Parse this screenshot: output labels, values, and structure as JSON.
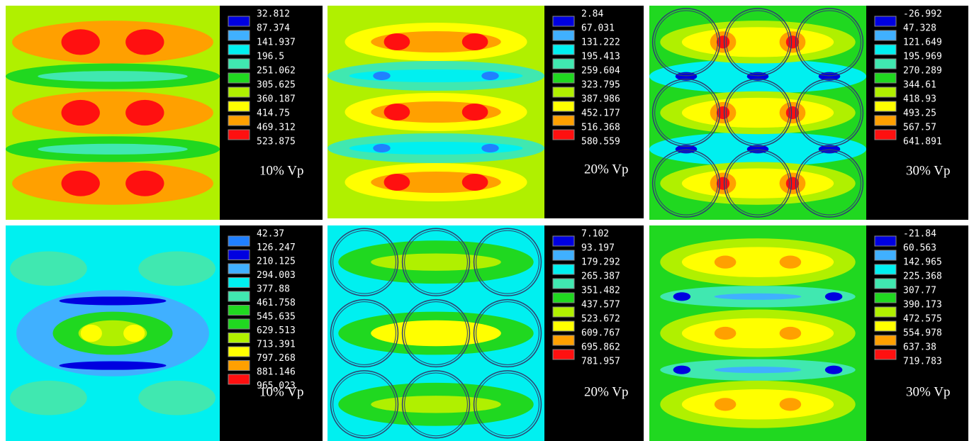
{
  "panels": [
    {
      "legend": [
        "32.812",
        "87.374",
        "141.937",
        "196.5",
        "251.062",
        "305.625",
        "360.187",
        "414.75",
        "469.312",
        "523.875"
      ],
      "label": "10% Vp"
    },
    {
      "legend": [
        "2.84",
        "67.031",
        "131.222",
        "195.413",
        "259.604",
        "323.795",
        "387.986",
        "452.177",
        "516.368",
        "580.559"
      ],
      "label": "20% Vp"
    },
    {
      "legend": [
        "-26.992",
        "47.328",
        "121.649",
        "195.969",
        "270.289",
        "344.61",
        "418.93",
        "493.25",
        "567.57",
        "641.891"
      ],
      "label": "30% Vp"
    },
    {
      "legend": [
        "42.37",
        "126.247",
        "210.125",
        "294.003",
        "377.88",
        "461.758",
        "545.635",
        "629.513",
        "713.391",
        "797.268",
        "881.146",
        "965.023"
      ],
      "label": "10% Vp"
    },
    {
      "legend": [
        "7.102",
        "93.197",
        "179.292",
        "265.387",
        "351.482",
        "437.577",
        "523.672",
        "609.767",
        "695.862",
        "781.957"
      ],
      "label": "20% Vp"
    },
    {
      "legend": [
        "-21.84",
        "60.563",
        "142.965",
        "225.368",
        "307.77",
        "390.173",
        "472.575",
        "554.978",
        "637.38",
        "719.783"
      ],
      "label": "30% Vp"
    }
  ]
}
